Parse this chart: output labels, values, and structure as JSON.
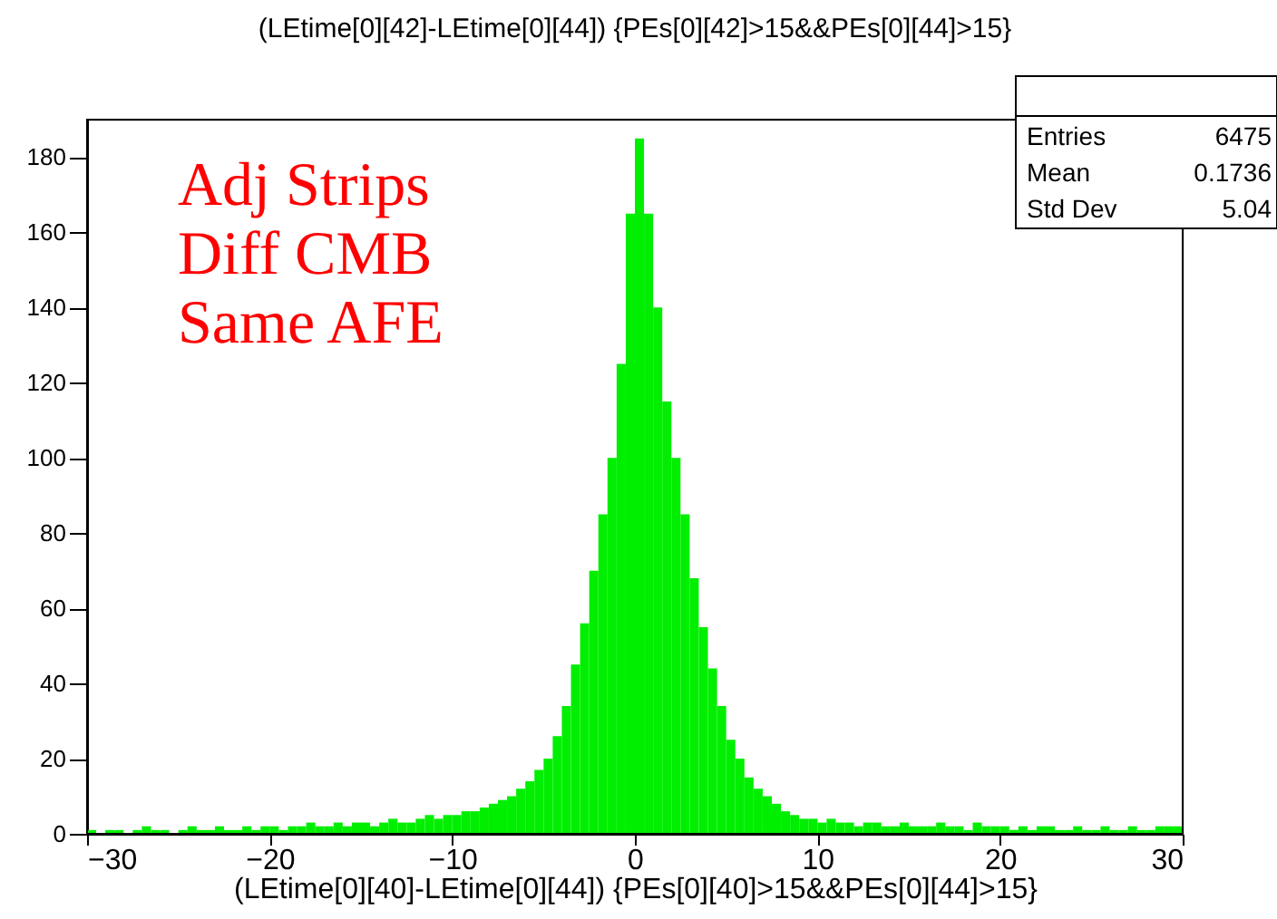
{
  "chart_data": {
    "type": "histogram",
    "title": "(LEtime[0][42]-LEtime[0][44]) {PEs[0][42]>15&&PEs[0][44]>15}",
    "xlabel": "(LEtime[0][40]-LEtime[0][44]) {PEs[0][40]>15&&PEs[0][44]>15}",
    "annotations": [
      "Adj Strips\nDiff CMB\nSame AFE",
      "Entries 6475",
      "Mean 0.1736",
      "Std Dev 5.04"
    ],
    "bins": [
      -30,
      -29.5,
      -29,
      -28.5,
      -28,
      -27.5,
      -27,
      -26.5,
      -26,
      -25.5,
      -25,
      -24.5,
      -24,
      -23.5,
      -23,
      -22.5,
      -22,
      -21.5,
      -21,
      -20.5,
      -20,
      -19.5,
      -19,
      -18.5,
      -18,
      -17.5,
      -17,
      -16.5,
      -16,
      -15.5,
      -15,
      -14.5,
      -14,
      -13.5,
      -13,
      -12.5,
      -12,
      -11.5,
      -11,
      -10.5,
      -10,
      -9.5,
      -9,
      -8.5,
      -8,
      -7.5,
      -7,
      -6.5,
      -6,
      -5.5,
      -5,
      -4.5,
      -4,
      -3.5,
      -3,
      -2.5,
      -2,
      -1.5,
      -1,
      -0.5,
      0,
      0.5,
      1,
      1.5,
      2,
      2.5,
      3,
      3.5,
      4,
      4.5,
      5,
      5.5,
      6,
      6.5,
      7,
      7.5,
      8,
      8.5,
      9,
      9.5,
      10,
      10.5,
      11,
      11.5,
      12,
      12.5,
      13,
      13.5,
      14,
      14.5,
      15,
      15.5,
      16,
      16.5,
      17,
      17.5,
      18,
      18.5,
      19,
      19.5,
      20,
      20.5,
      21,
      21.5,
      22,
      22.5,
      23,
      23.5,
      24,
      24.5,
      25,
      25.5,
      26,
      26.5,
      27,
      27.5,
      28,
      28.5,
      29,
      29.5,
      30
    ],
    "values": [
      1,
      0,
      1,
      1,
      0,
      1,
      2,
      1,
      1,
      0,
      1,
      2,
      1,
      1,
      2,
      1,
      1,
      2,
      1,
      2,
      2,
      1,
      2,
      2,
      3,
      2,
      2,
      3,
      2,
      3,
      3,
      2,
      3,
      4,
      3,
      3,
      4,
      5,
      4,
      5,
      5,
      6,
      6,
      7,
      8,
      9,
      10,
      12,
      14,
      17,
      20,
      26,
      34,
      45,
      56,
      70,
      85,
      100,
      125,
      165,
      185,
      165,
      140,
      115,
      100,
      85,
      68,
      55,
      44,
      34,
      25,
      20,
      15,
      12,
      10,
      8,
      6,
      5,
      4,
      4,
      3,
      4,
      3,
      3,
      2,
      3,
      3,
      2,
      2,
      3,
      2,
      2,
      2,
      3,
      2,
      2,
      1,
      3,
      2,
      2,
      2,
      1,
      2,
      1,
      2,
      2,
      1,
      1,
      2,
      1,
      1,
      2,
      1,
      1,
      2,
      1,
      1,
      2,
      2,
      2
    ],
    "color": "#00ee00",
    "xlim": [
      -30,
      30
    ],
    "xticks": [
      -30,
      -20,
      -10,
      0,
      10,
      20,
      30
    ],
    "ylim": [
      0,
      190
    ],
    "yticks": [
      0,
      20,
      40,
      60,
      80,
      100,
      120,
      140,
      160,
      180
    ],
    "grid": false
  }
}
